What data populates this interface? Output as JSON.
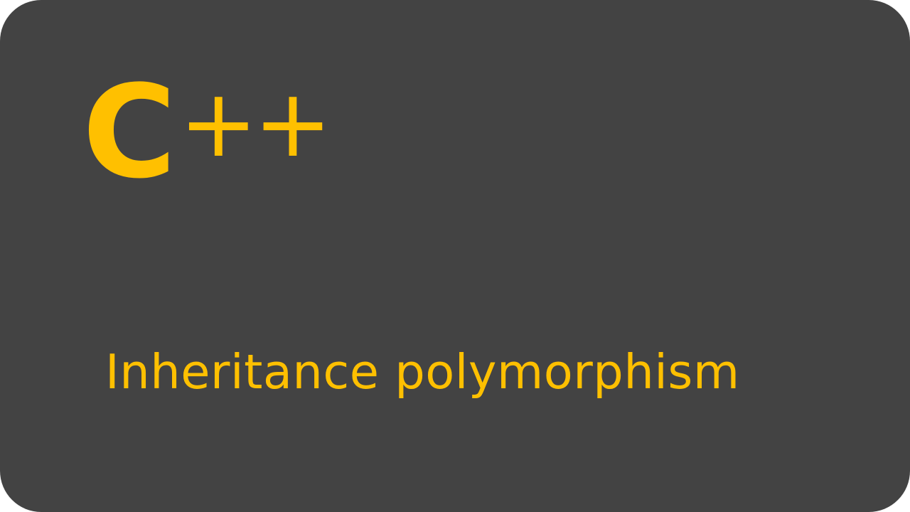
{
  "slide": {
    "logo": {
      "letter": "C",
      "suffix": "++"
    },
    "subtitle": "Inheritance polymorphism",
    "colors": {
      "background": "#434343",
      "accent": "#ffc000"
    }
  }
}
